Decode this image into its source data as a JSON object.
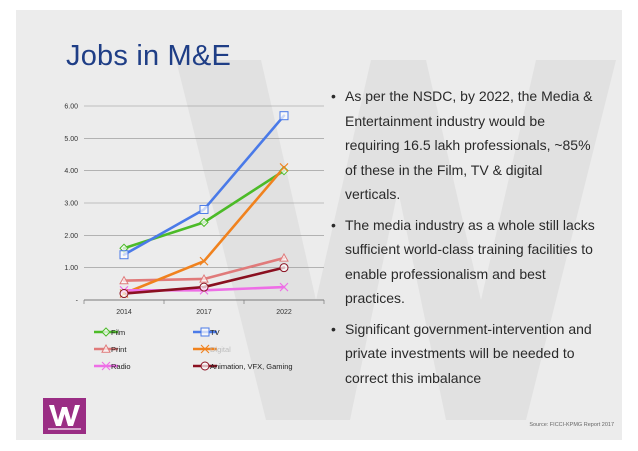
{
  "slide": {
    "title": "Jobs in M&E",
    "bullets": [
      "As per the NSDC, by 2022, the Media & Entertainment industry would be requiring 16.5 lakh professionals, ~85% of these in the Film, TV & digital verticals.",
      "The media industry as a whole still lacks sufficient world-class training facilities to enable professionalism and best practices.",
      "Significant government-intervention and private investments will be needed to correct this imbalance"
    ],
    "source": "Source: FICCI-KPMG Report 2017",
    "title_color": "#1f3e86",
    "background_color": "#ececec",
    "logo_color": "#9a2d84"
  },
  "chart_data": {
    "type": "line",
    "categories": [
      "2014",
      "2017",
      "2022"
    ],
    "y_ticks": [
      "-",
      "1.00",
      "2.00",
      "3.00",
      "4.00",
      "5.00",
      "6.00"
    ],
    "ylim": [
      0,
      6
    ],
    "grid": true,
    "legend_position": "bottom",
    "series": [
      {
        "name": "Film",
        "values": [
          1.6,
          2.4,
          4.0
        ],
        "color": "#4cbb28",
        "marker": "diamond"
      },
      {
        "name": "TV",
        "values": [
          1.4,
          2.8,
          5.7
        ],
        "color": "#4a7ae8",
        "marker": "square"
      },
      {
        "name": "Print",
        "values": [
          0.6,
          0.65,
          1.3
        ],
        "color": "#e07a7a",
        "marker": "triangle"
      },
      {
        "name": "Digital",
        "values": [
          0.2,
          1.2,
          4.1
        ],
        "color": "#f0821e",
        "marker": "x"
      },
      {
        "name": "Radio",
        "values": [
          0.3,
          0.3,
          0.4
        ],
        "color": "#ee6ee6",
        "marker": "x"
      },
      {
        "name": "Animation, VFX, Gaming",
        "values": [
          0.2,
          0.4,
          1.0
        ],
        "color": "#8a1020",
        "marker": "circle"
      }
    ]
  }
}
